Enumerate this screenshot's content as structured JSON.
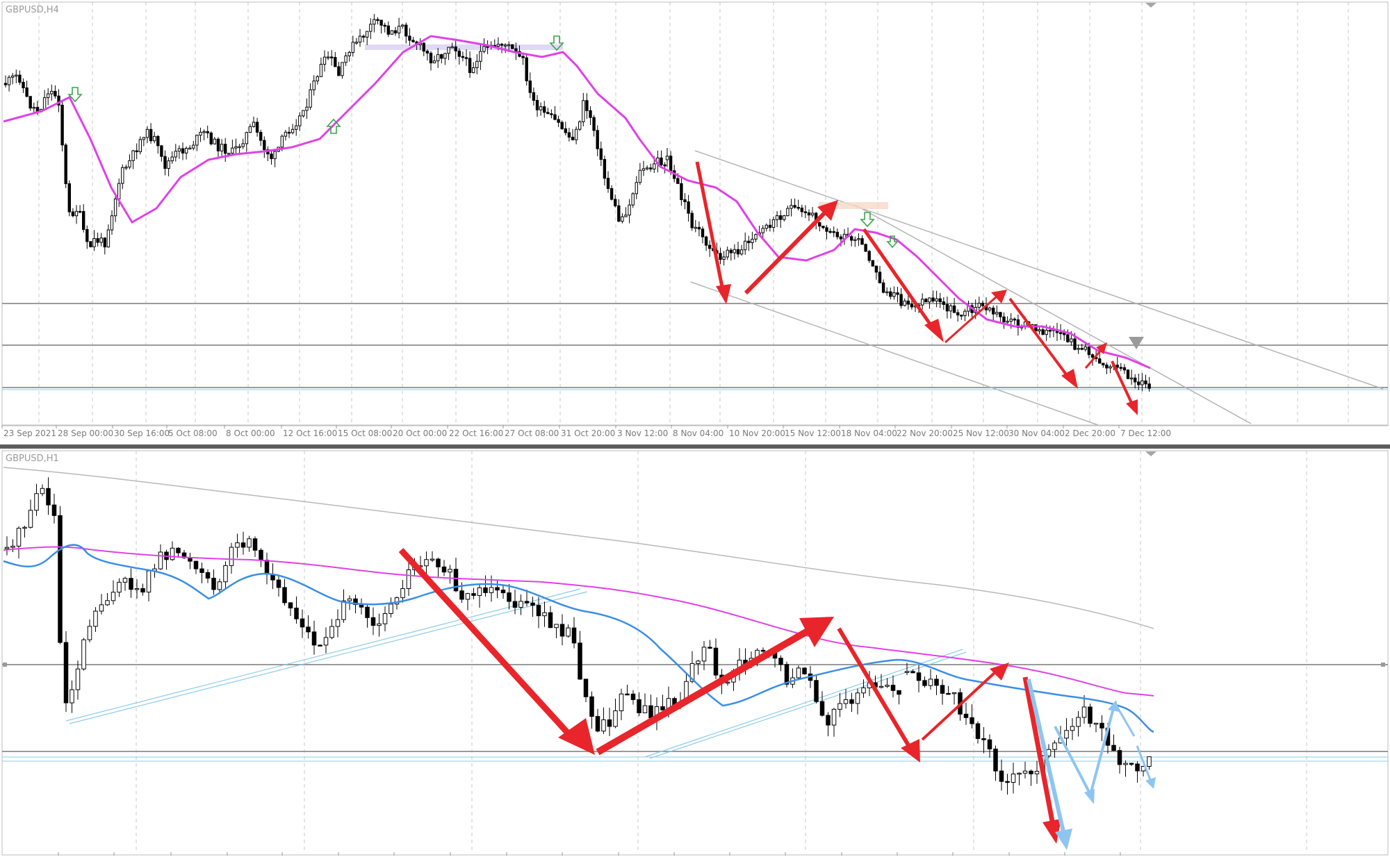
{
  "chart_data": [
    {
      "type": "candlestick",
      "title": "GBPUSD,H4",
      "x_tick_labels": [
        "23 Sep 2021",
        "28 Sep 00:00",
        "30 Sep 16:00",
        "5 Oct 08:00",
        "8 Oct 00:00",
        "12 Oct 16:00",
        "15 Oct 08:00",
        "20 Oct 00:00",
        "22 Oct 16:00",
        "27 Oct 08:00",
        "31 Oct 20:00",
        "3 Nov 12:00",
        "8 Nov 04:00",
        "10 Nov 20:00",
        "15 Nov 12:00",
        "18 Nov 04:00",
        "22 Nov 20:00",
        "25 Nov 12:00",
        "30 Nov 04:00",
        "2 Dec 20:00",
        "7 Dec 12:00"
      ],
      "close_path": [
        [
          0,
          1.368
        ],
        [
          0.02,
          1.3725
        ],
        [
          0.035,
          1.3712
        ],
        [
          0.05,
          1.3704
        ],
        [
          0.075,
          1.372
        ],
        [
          0.09,
          1.368
        ],
        [
          0.105,
          1.362
        ],
        [
          0.125,
          1.356
        ],
        [
          0.14,
          1.349
        ],
        [
          0.155,
          1.3445
        ],
        [
          0.17,
          1.346
        ],
        [
          0.19,
          1.353
        ],
        [
          0.21,
          1.357
        ],
        [
          0.225,
          1.36
        ],
        [
          0.24,
          1.3625
        ],
        [
          0.26,
          1.3595
        ],
        [
          0.275,
          1.356
        ],
        [
          0.295,
          1.361
        ],
        [
          0.31,
          1.359
        ],
        [
          0.325,
          1.362
        ],
        [
          0.345,
          1.363
        ],
        [
          0.36,
          1.36
        ],
        [
          0.38,
          1.359
        ],
        [
          0.395,
          1.3625
        ],
        [
          0.41,
          1.361
        ],
        [
          0.425,
          1.36
        ],
        [
          0.44,
          1.3615
        ],
        [
          0.455,
          1.368
        ],
        [
          0.47,
          1.37
        ],
        [
          0.485,
          1.374
        ],
        [
          0.5,
          1.377
        ],
        [
          0.515,
          1.378
        ],
        [
          0.53,
          1.3775
        ],
        [
          0.545,
          1.38
        ],
        [
          0.56,
          1.3825
        ],
        [
          0.575,
          1.3815
        ],
        [
          0.59,
          1.383
        ],
        [
          0.605,
          1.381
        ],
        [
          0.62,
          1.38
        ],
        [
          0.64,
          1.378
        ],
        [
          0.655,
          1.3795
        ],
        [
          0.67,
          1.377
        ],
        [
          0.685,
          1.376
        ],
        [
          0.7,
          1.3775
        ],
        [
          0.715,
          1.377
        ],
        [
          0.73,
          1.376
        ],
        [
          0.745,
          1.3755
        ],
        [
          0.76,
          1.379
        ],
        [
          0.775,
          1.378
        ],
        [
          0.79,
          1.3795
        ],
        [
          0.805,
          1.3765
        ],
        [
          0.815,
          1.369
        ],
        [
          0.825,
          1.366
        ],
        [
          0.84,
          1.365
        ],
        [
          0.855,
          1.364
        ],
        [
          0.87,
          1.3625
        ],
        [
          0.885,
          1.3615
        ],
        [
          0.9,
          1.363
        ],
        [
          0.915,
          1.366
        ],
        [
          0.93,
          1.364
        ],
        [
          0.945,
          1.36
        ],
        [
          0.955,
          1.352
        ],
        [
          0.965,
          1.346
        ],
        [
          0.98,
          1.344
        ],
        [
          1.0,
          1.343
        ]
      ],
      "ma_path": [
        [
          0,
          1.369
        ],
        [
          0.05,
          1.3695
        ],
        [
          0.08,
          1.369
        ],
        [
          0.1,
          1.364
        ],
        [
          0.13,
          1.355
        ],
        [
          0.15,
          1.351
        ],
        [
          0.17,
          1.352
        ],
        [
          0.2,
          1.356
        ],
        [
          0.23,
          1.359
        ],
        [
          0.26,
          1.3595
        ],
        [
          0.3,
          1.3595
        ],
        [
          0.34,
          1.361
        ],
        [
          0.38,
          1.361
        ],
        [
          0.42,
          1.361
        ],
        [
          0.45,
          1.364
        ],
        [
          0.48,
          1.369
        ],
        [
          0.51,
          1.374
        ],
        [
          0.54,
          1.3775
        ],
        [
          0.57,
          1.38
        ],
        [
          0.6,
          1.381
        ],
        [
          0.64,
          1.38
        ],
        [
          0.68,
          1.379
        ],
        [
          0.72,
          1.3775
        ],
        [
          0.76,
          1.3775
        ],
        [
          0.79,
          1.3785
        ],
        [
          0.81,
          1.377
        ],
        [
          0.84,
          1.373
        ],
        [
          0.87,
          1.3685
        ],
        [
          0.9,
          1.365
        ],
        [
          0.93,
          1.364
        ],
        [
          0.96,
          1.36
        ],
        [
          0.98,
          1.355
        ],
        [
          1.0,
          1.351
        ]
      ],
      "note_series": "first segment of the H4 chart (23 Sep - 31 Oct); price-like values in arbitrary chart scale"
    },
    {
      "type": "candlestick",
      "title": "GBPUSD,H1",
      "annotations": [
        "red trend arrows",
        "blue projection arrows",
        "parallel trend channels"
      ]
    }
  ],
  "colors": {
    "bull_candle": "#ffffff",
    "bear_candle": "#000000",
    "ma_magenta": "#e040e8",
    "ma_blue": "#3a8ee6",
    "ma_gray": "#b8b8b8",
    "arrow_red": "#e8252a",
    "arrow_blue": "#8ec5f0",
    "grid": "#c8c8c8",
    "hline": "#999999",
    "hline_blue": "#8ccbe8"
  }
}
